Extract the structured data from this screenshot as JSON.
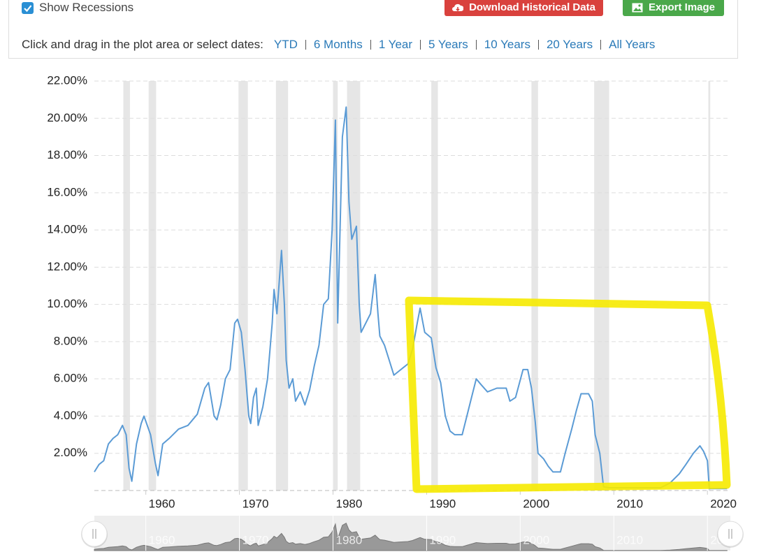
{
  "controls": {
    "show_recessions": "Show Recessions",
    "download": "Download Historical Data",
    "export": "Export Image",
    "prompt": "Click and drag in the plot area or select dates:",
    "ranges": [
      "YTD",
      "6 Months",
      "1 Year",
      "5 Years",
      "10 Years",
      "20 Years",
      "All Years"
    ]
  },
  "chart_data": {
    "type": "line",
    "color": "#5b9bd5",
    "x": [
      1954.5,
      1955,
      1955.5,
      1956,
      1956.5,
      1957,
      1957.5,
      1957.9,
      1958.2,
      1958.5,
      1959,
      1959.5,
      1959.8,
      1960.5,
      1961,
      1961.3,
      1961.8,
      1962.5,
      1963.5,
      1964.5,
      1965.5,
      1966.3,
      1966.7,
      1967.3,
      1967.6,
      1968,
      1968.5,
      1969,
      1969.5,
      1969.8,
      1970.2,
      1970.6,
      1971,
      1971.2,
      1971.5,
      1971.8,
      1972,
      1972.5,
      1973,
      1973.5,
      1973.7,
      1974,
      1974.5,
      1974.8,
      1975,
      1975.3,
      1975.7,
      1976,
      1976.5,
      1977,
      1977.5,
      1978,
      1978.5,
      1979,
      1979.5,
      1979.9,
      1980.25,
      1980.5,
      1980.8,
      1981,
      1981.4,
      1981.7,
      1982,
      1982.5,
      1982.8,
      1983,
      1983.5,
      1984,
      1984.5,
      1984.8,
      1985,
      1985.5,
      1986,
      1986.5,
      1987,
      1987.5,
      1988,
      1988.5,
      1989,
      1989.3,
      1989.8,
      1990.5,
      1991,
      1991.5,
      1992,
      1992.5,
      1993,
      1993.8,
      1994.3,
      1994.8,
      1995.3,
      1995.8,
      1996.5,
      1997.5,
      1998.5,
      1998.9,
      1999.5,
      2000.3,
      2000.8,
      2001.2,
      2001.6,
      2001.9,
      2002.5,
      2003,
      2003.5,
      2004.3,
      2004.8,
      2005.5,
      2006,
      2006.5,
      2007.3,
      2007.7,
      2008,
      2008.5,
      2008.9,
      2009.5,
      2012,
      2015,
      2016,
      2017,
      2017.7,
      2018.5,
      2019.2,
      2019.6,
      2020,
      2020.2,
      2021,
      2022.1
    ],
    "values": [
      1.0,
      1.4,
      1.6,
      2.5,
      2.8,
      3.0,
      3.5,
      3.0,
      1.2,
      0.5,
      2.5,
      3.6,
      4.0,
      3.0,
      1.5,
      0.8,
      2.5,
      2.8,
      3.3,
      3.5,
      4.1,
      5.5,
      5.8,
      4.0,
      3.8,
      4.6,
      6.0,
      6.5,
      9.0,
      9.2,
      8.5,
      6.5,
      4.0,
      3.6,
      5.0,
      5.5,
      3.5,
      4.5,
      6.0,
      9.0,
      10.8,
      9.5,
      12.9,
      10.0,
      7.0,
      5.5,
      6.0,
      4.8,
      5.3,
      4.6,
      5.4,
      6.7,
      7.8,
      10.0,
      10.3,
      14.0,
      19.9,
      9.0,
      15.0,
      19.0,
      20.6,
      15.5,
      13.5,
      14.2,
      10.0,
      8.5,
      9.0,
      9.5,
      11.6,
      9.5,
      8.3,
      7.8,
      7.0,
      6.2,
      6.4,
      6.6,
      6.8,
      7.6,
      9.0,
      9.8,
      8.5,
      8.2,
      6.6,
      5.8,
      4.0,
      3.2,
      3.0,
      3.0,
      4.0,
      5.0,
      6.0,
      5.7,
      5.3,
      5.5,
      5.5,
      4.8,
      5.0,
      6.5,
      6.5,
      5.5,
      3.7,
      2.0,
      1.7,
      1.3,
      1.0,
      1.0,
      2.0,
      3.3,
      4.3,
      5.2,
      5.2,
      4.8,
      3.0,
      2.0,
      0.2,
      0.15,
      0.15,
      0.15,
      0.4,
      0.9,
      1.4,
      2.0,
      2.4,
      2.1,
      1.6,
      0.1,
      0.1,
      0.1
    ],
    "recessions": [
      [
        1957.6,
        1958.3
      ],
      [
        1960.3,
        1961.1
      ],
      [
        1969.9,
        1970.9
      ],
      [
        1973.9,
        1975.2
      ],
      [
        1980.0,
        1980.5
      ],
      [
        1981.5,
        1982.9
      ],
      [
        1990.5,
        1991.2
      ],
      [
        2001.2,
        2001.9
      ],
      [
        2007.9,
        2009.5
      ],
      [
        2020.1,
        2020.3
      ]
    ],
    "xlim": [
      1954.5,
      2022.3
    ],
    "xticks": [
      1960,
      1970,
      1980,
      1990,
      2000,
      2010,
      2020
    ],
    "ylim": [
      0,
      22
    ],
    "yticks": [
      {
        "value": 2,
        "label": "2.00%"
      },
      {
        "value": 4,
        "label": "4.00%"
      },
      {
        "value": 6,
        "label": "6.00%"
      },
      {
        "value": 8,
        "label": "8.00%"
      },
      {
        "value": 10,
        "label": "10.00%"
      },
      {
        "value": 12,
        "label": "12.00%"
      },
      {
        "value": 14,
        "label": "14.00%"
      },
      {
        "value": 16,
        "label": "16.00%"
      },
      {
        "value": 18,
        "label": "18.00%"
      },
      {
        "value": 20,
        "label": "20.00%"
      },
      {
        "value": 22,
        "label": "22.00%"
      }
    ],
    "grid": true
  }
}
